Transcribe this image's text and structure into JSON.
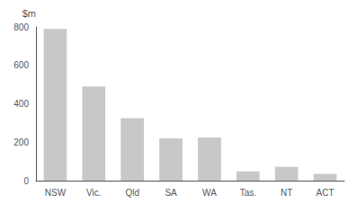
{
  "chart_data": {
    "type": "bar",
    "ylabel": "$m",
    "categories": [
      "NSW",
      "Vic.",
      "Qld",
      "SA",
      "WA",
      "Tas.",
      "NT",
      "ACT"
    ],
    "values": [
      790,
      490,
      325,
      220,
      225,
      48,
      72,
      35
    ],
    "color": "#c8c8c8",
    "ylim": [
      0,
      800
    ],
    "yticks": [
      0,
      200,
      400,
      600,
      800
    ],
    "grid": false
  }
}
